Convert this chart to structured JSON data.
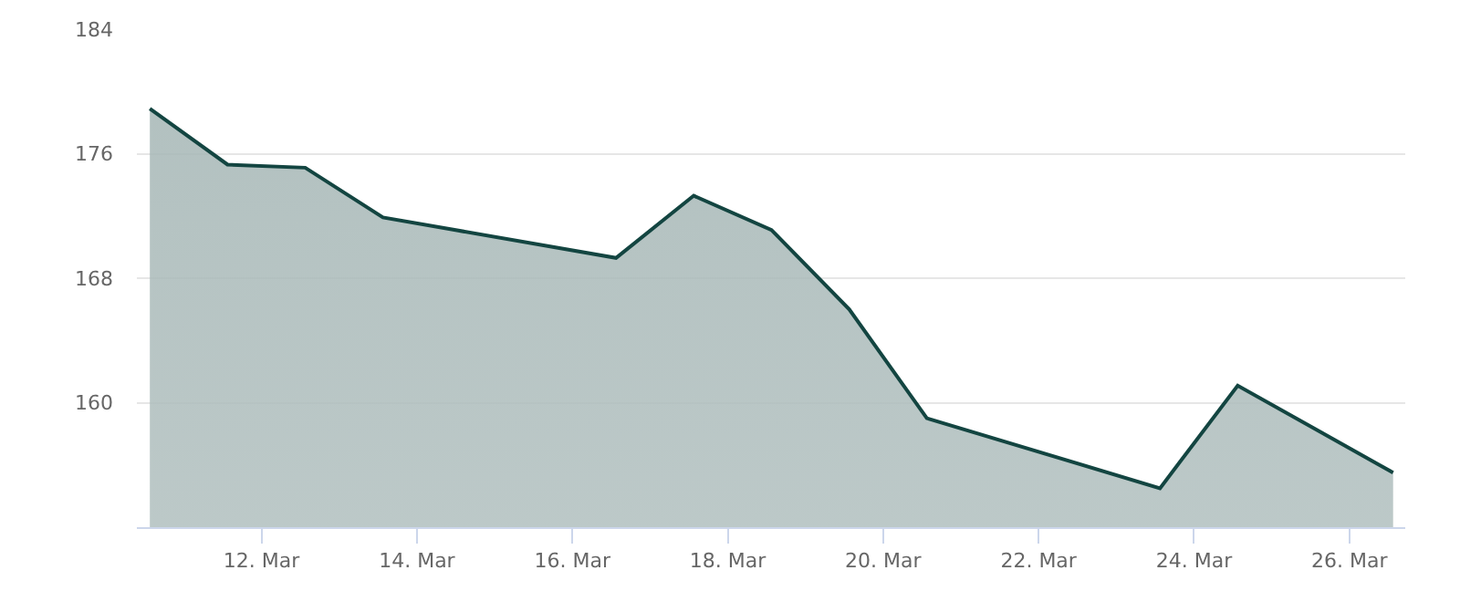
{
  "chart_data": {
    "type": "area",
    "x": [
      "--03-10T13:30",
      "--03-11T13:30",
      "--03-12T13:30",
      "--03-13T13:30",
      "--03-16T13:30",
      "--03-17T13:30",
      "--03-18T13:30",
      "--03-19T13:30",
      "--03-20T13:30",
      "--03-23T13:30",
      "--03-24T13:30",
      "--03-25T13:30",
      "--03-26T13:30"
    ],
    "series": [
      {
        "color": "#134541",
        "values": [
          178.9,
          175.3,
          175.1,
          171.9,
          169.3,
          173.3,
          171.1,
          166.0,
          159.0,
          154.5,
          161.1,
          158.3,
          155.5
        ]
      }
    ],
    "xlim": [
      "--03-10T09:30",
      "--03-26T17:15"
    ],
    "xticks": [
      {
        "value": "--03-12",
        "label": "12. Mar"
      },
      {
        "value": "--03-14",
        "label": "14. Mar"
      },
      {
        "value": "--03-16",
        "label": "16. Mar"
      },
      {
        "value": "--03-18",
        "label": "18. Mar"
      },
      {
        "value": "--03-20",
        "label": "20. Mar"
      },
      {
        "value": "--03-22",
        "label": "22. Mar"
      },
      {
        "value": "--03-24",
        "label": "24. Mar"
      },
      {
        "value": "--03-26",
        "label": "26. Mar"
      }
    ],
    "ylim": [
      152,
      184
    ],
    "yticks": [
      160,
      168,
      176,
      184
    ],
    "grid": "y",
    "marker": "none",
    "line_style": "solid"
  }
}
